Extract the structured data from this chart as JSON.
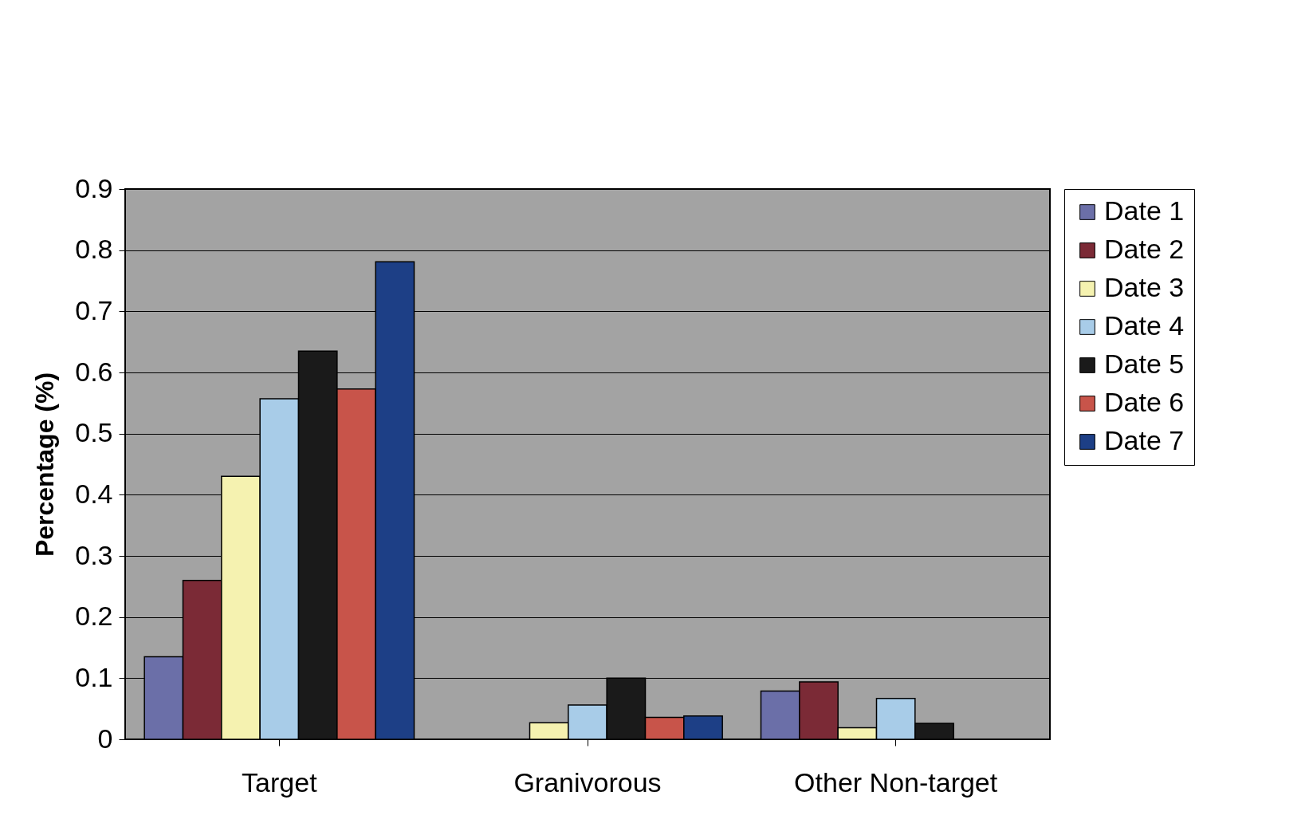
{
  "chart_data": {
    "type": "bar",
    "ylabel": "Percentage (%)",
    "categories": [
      "Target",
      "Granivorous",
      "Other Non-target"
    ],
    "series": [
      {
        "name": "Date 1",
        "color": "#6b6fa8",
        "values": [
          0.135,
          null,
          0.079
        ]
      },
      {
        "name": "Date 2",
        "color": "#7b2a36",
        "values": [
          0.26,
          null,
          0.094
        ]
      },
      {
        "name": "Date 3",
        "color": "#f5f2b0",
        "values": [
          0.43,
          0.027,
          0.019
        ]
      },
      {
        "name": "Date 4",
        "color": "#a8cce8",
        "values": [
          0.557,
          0.056,
          0.067
        ]
      },
      {
        "name": "Date 5",
        "color": "#1a1a1a",
        "values": [
          0.635,
          0.1,
          0.026
        ]
      },
      {
        "name": "Date 6",
        "color": "#c8544a",
        "values": [
          0.573,
          0.036,
          null
        ]
      },
      {
        "name": "Date 7",
        "color": "#1d3f86",
        "values": [
          0.781,
          0.038,
          null
        ]
      }
    ],
    "ylim": [
      0,
      0.9
    ],
    "yticks": [
      0,
      0.1,
      0.2,
      0.3,
      0.4,
      0.5,
      0.6,
      0.7,
      0.8,
      0.9
    ],
    "grid": "y",
    "legend": "right"
  }
}
